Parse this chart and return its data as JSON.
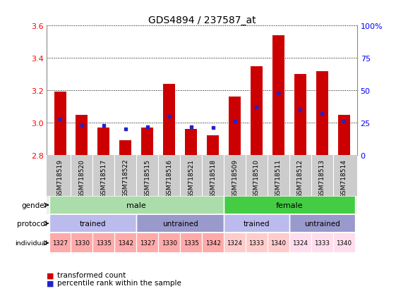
{
  "title": "GDS4894 / 237587_at",
  "samples": [
    "GSM718519",
    "GSM718520",
    "GSM718517",
    "GSM718522",
    "GSM718515",
    "GSM718516",
    "GSM718521",
    "GSM718518",
    "GSM718509",
    "GSM718510",
    "GSM718511",
    "GSM718512",
    "GSM718513",
    "GSM718514"
  ],
  "transformed_count": [
    3.19,
    3.05,
    2.97,
    2.89,
    2.97,
    3.24,
    2.96,
    2.92,
    3.16,
    3.35,
    3.54,
    3.3,
    3.32,
    3.05
  ],
  "percentile_rank": [
    28,
    23,
    23,
    20,
    22,
    30,
    22,
    21,
    26,
    37,
    48,
    35,
    32,
    26
  ],
  "y_min": 2.8,
  "y_max": 3.6,
  "y_ticks": [
    2.8,
    3.0,
    3.2,
    3.4,
    3.6
  ],
  "right_y_ticks": [
    0,
    25,
    50,
    75,
    100
  ],
  "bar_color": "#cc0000",
  "blue_color": "#2222cc",
  "gender_male_color": "#aaddaa",
  "gender_female_color": "#44cc44",
  "protocol_trained_color": "#bbbbee",
  "protocol_untrained_color": "#9999cc",
  "individual_male_color": "#ffaaaa",
  "individual_female_trained_color": "#ffcccc",
  "individual_female_untrained_color": "#ffddee",
  "xticklabel_bg": "#cccccc",
  "gender_labels": [
    [
      "male",
      0,
      7
    ],
    [
      "female",
      8,
      13
    ]
  ],
  "protocol_labels": [
    [
      "trained",
      0,
      3
    ],
    [
      "untrained",
      4,
      7
    ],
    [
      "trained",
      8,
      10
    ],
    [
      "untrained",
      11,
      13
    ]
  ],
  "individual_labels": [
    [
      "1327",
      0
    ],
    [
      "1330",
      1
    ],
    [
      "1335",
      2
    ],
    [
      "1342",
      3
    ],
    [
      "1327",
      4
    ],
    [
      "1330",
      5
    ],
    [
      "1335",
      6
    ],
    [
      "1342",
      7
    ],
    [
      "1324",
      8
    ],
    [
      "1333",
      9
    ],
    [
      "1340",
      10
    ],
    [
      "1324",
      11
    ],
    [
      "1333",
      12
    ],
    [
      "1340",
      13
    ]
  ],
  "individual_male_indices": [
    0,
    1,
    2,
    3,
    4,
    5,
    6,
    7
  ],
  "individual_female_trained_indices": [
    8,
    9,
    10
  ],
  "individual_female_untrained_indices": [
    11,
    12,
    13
  ]
}
